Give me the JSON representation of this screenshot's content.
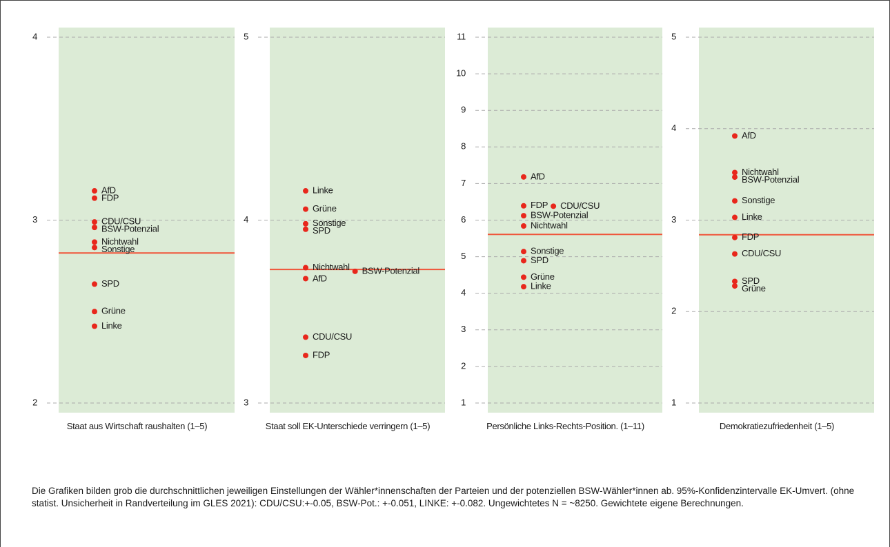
{
  "chart_data": [
    {
      "type": "dot",
      "xlabel": "Staat aus Wirtschaft raushalten (1–5)",
      "ylim": [
        2,
        4
      ],
      "yticks": [
        2,
        3,
        4
      ],
      "grid": true,
      "color": "#e8271c",
      "band_color": "#dcebd6",
      "reference_value": 2.82,
      "reference_color": "#f0553a",
      "categories": [
        "AfD",
        "FDP",
        "CDU/CSU",
        "BSW-Potenzial",
        "Nichtwahl",
        "Sonstige",
        "SPD",
        "Grüne",
        "Linke"
      ],
      "values": [
        3.16,
        3.12,
        2.99,
        2.96,
        2.88,
        2.85,
        2.65,
        2.5,
        2.42
      ]
    },
    {
      "type": "dot",
      "xlabel": "Staat soll EK-Unterschiede verringern (1–5)",
      "ylim": [
        3,
        5
      ],
      "yticks": [
        3,
        4,
        5
      ],
      "grid": true,
      "color": "#e8271c",
      "band_color": "#dcebd6",
      "reference_value": 3.73,
      "reference_color": "#f0553a",
      "categories": [
        "Linke",
        "Grüne",
        "Sonstige",
        "SPD",
        "Nichtwahl",
        "BSW-Potenzial",
        "AfD",
        "CDU/CSU",
        "FDP"
      ],
      "values": [
        4.16,
        4.06,
        3.98,
        3.95,
        3.74,
        3.72,
        3.68,
        3.36,
        3.26
      ]
    },
    {
      "type": "dot",
      "xlabel": "Persönliche Links-Rechts-Position. (1–11)",
      "ylim": [
        1,
        11
      ],
      "yticks": [
        1,
        2,
        3,
        4,
        5,
        6,
        7,
        8,
        9,
        10,
        11
      ],
      "grid": true,
      "color": "#e8271c",
      "band_color": "#dcebd6",
      "reference_value": 5.61,
      "reference_color": "#f0553a",
      "categories": [
        "AfD",
        "FDP",
        "CDU/CSU",
        "BSW-Potenzial",
        "Nichtwahl",
        "Sonstige",
        "SPD",
        "Grüne",
        "Linke"
      ],
      "values": [
        7.18,
        6.39,
        6.38,
        6.12,
        5.84,
        5.14,
        4.89,
        4.44,
        4.18
      ]
    },
    {
      "type": "dot",
      "xlabel": "Demokratiezufriedenheit (1–5)",
      "ylim": [
        1,
        5
      ],
      "yticks": [
        1,
        2,
        3,
        4,
        5
      ],
      "grid": true,
      "color": "#e8271c",
      "band_color": "#dcebd6",
      "reference_value": 2.84,
      "reference_color": "#f0553a",
      "categories": [
        "AfD",
        "Nichtwahl",
        "BSW-Potenzial",
        "Sonstige",
        "Linke",
        "FDP",
        "CDU/CSU",
        "SPD",
        "Grüne"
      ],
      "values": [
        3.92,
        3.52,
        3.47,
        3.21,
        3.03,
        2.81,
        2.63,
        2.33,
        2.28
      ]
    }
  ],
  "note": "Die Grafiken bilden grob die durchschnittlichen jeweiligen Einstellungen der Wähler*innenschaften der Parteien und der potenziellen BSW-Wähler*innen ab. 95%-Konfidenzintervalle EK-Umvert. (ohne statist. Unsicherheit in Randverteilung im GLES 2021): CDU/CSU:+-0.05, BSW-Pot.: +-0.051, LINKE: +-0.082. Ungewichtetes N = ~8250. Gewichtete eigene Berechnungen."
}
